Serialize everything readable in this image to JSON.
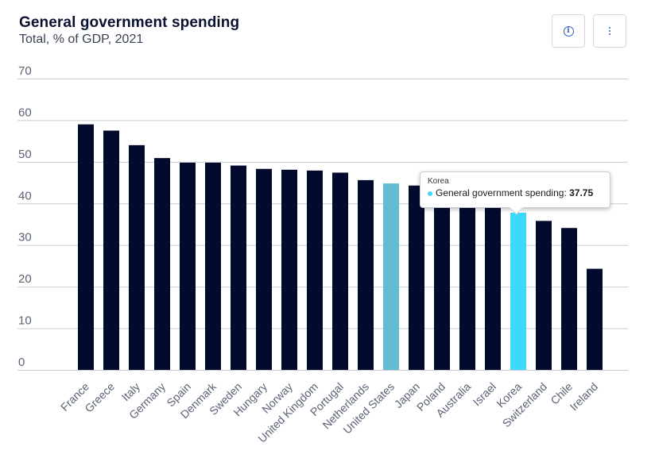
{
  "header": {
    "title": "General government spending",
    "subtitle": "Total, % of GDP, 2021"
  },
  "toolbar": {
    "info_icon": "info-icon",
    "more_icon": "more-vertical-icon"
  },
  "tooltip": {
    "category": "Korea",
    "series": "General government spending:",
    "value": "37.75"
  },
  "colors": {
    "bar": "#020b2d",
    "highlight_us": "#62bdd2",
    "highlight_korea": "#3ed8fa",
    "grid": "#c9ccd6",
    "tick_text": "#5a6275"
  },
  "chart_data": {
    "type": "bar",
    "title": "General government spending",
    "subtitle": "Total, % of GDP, 2021",
    "categories": [
      "France",
      "Greece",
      "Italy",
      "Germany",
      "Spain",
      "Denmark",
      "Sweden",
      "Hungary",
      "Norway",
      "United Kingdom",
      "Portugal",
      "Netherlands",
      "United States",
      "Japan",
      "Poland",
      "Australia",
      "Israel",
      "Korea",
      "Switzerland",
      "Chile",
      "Ireland"
    ],
    "series": [
      {
        "name": "General government spending",
        "values": [
          59.0,
          57.5,
          54.0,
          50.9,
          49.8,
          49.8,
          49.1,
          48.3,
          48.1,
          47.9,
          47.4,
          45.6,
          44.8,
          44.3,
          43.5,
          43.0,
          42.2,
          37.75,
          35.8,
          34.1,
          24.3
        ]
      }
    ],
    "highlighted": {
      "United States": "highlight_us",
      "Korea": "highlight_korea"
    },
    "xlabel": "",
    "ylabel": "",
    "ylim": [
      0,
      70
    ],
    "yticks": [
      0,
      10,
      20,
      30,
      40,
      50,
      60,
      70
    ],
    "grid": true,
    "legend": "none"
  }
}
